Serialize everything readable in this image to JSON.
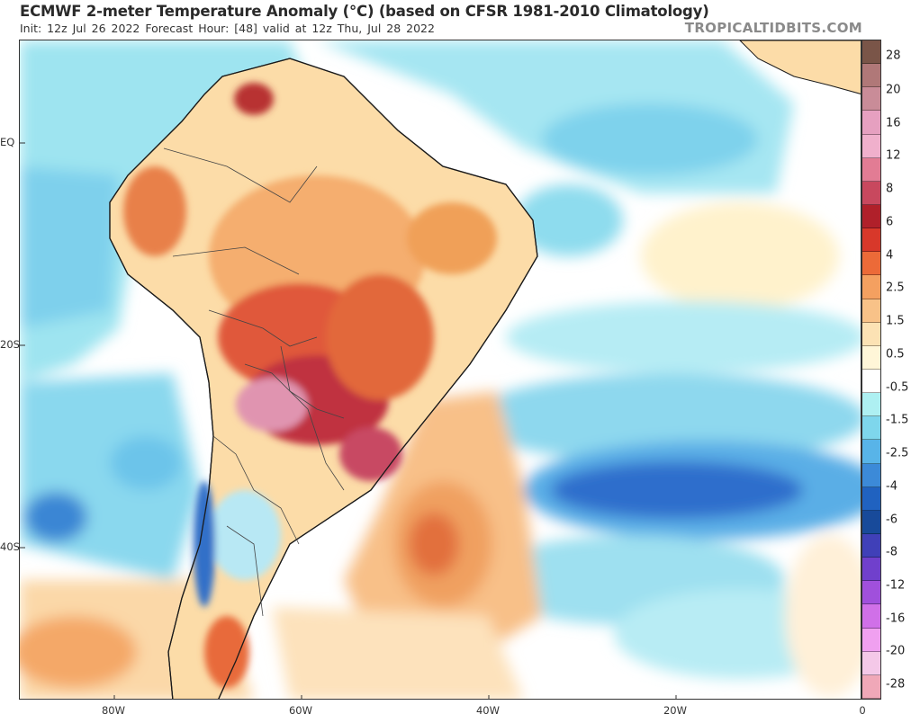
{
  "title": "ECMWF 2-meter Temperature Anomaly (°C) (based on CFSR 1981-2010 Climatology)",
  "subtitle": "Init: 12z Jul 26 2022   Forecast Hour: [48]   valid at 12z Thu, Jul 28 2022",
  "brand": "TROPICALTIDBITS.COM",
  "lat_labels": [
    "EQ",
    "20S",
    "40S"
  ],
  "lon_labels": [
    "80W",
    "60W",
    "40W",
    "20W",
    "0"
  ],
  "colorbar": {
    "labels": [
      "28",
      "20",
      "16",
      "12",
      "8",
      "6",
      "4",
      "2.5",
      "1.5",
      "0.5",
      "-0.5",
      "-1.5",
      "-2.5",
      "-4",
      "-6",
      "-8",
      "-12",
      "-16",
      "-20",
      "-28"
    ],
    "colors": [
      "#7a5548",
      "#b07878",
      "#c98c98",
      "#e6a0c0",
      "#f0b0cc",
      "#e27c94",
      "#c8485e",
      "#b0202a",
      "#d8382a",
      "#ec6a38",
      "#f4a060",
      "#f8c288",
      "#fce2b4",
      "#fff6d8",
      "#ffffff",
      "#aef0f2",
      "#7ed6ec",
      "#58b4e8",
      "#3c8ad8",
      "#2062c0",
      "#184a9a",
      "#4040b8",
      "#7040cc",
      "#a050dc",
      "#d070e8",
      "#f0a0f0",
      "#f4c8e8",
      "#f0a8b8"
    ]
  }
}
